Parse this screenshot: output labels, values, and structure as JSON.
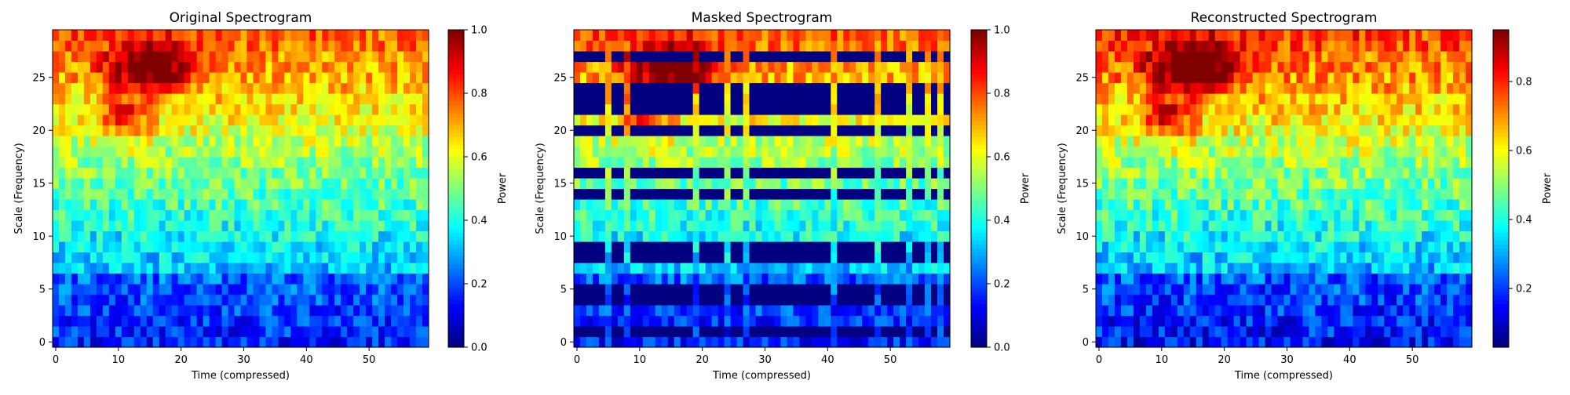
{
  "chart_data": [
    {
      "type": "heatmap",
      "title": "Original Spectrogram",
      "xlabel": "Time (compressed)",
      "ylabel": "Scale (Frequency)",
      "colorbar_label": "Power",
      "colormap": "jet",
      "x_range": [
        0,
        59
      ],
      "y_range": [
        0,
        29
      ],
      "x_ticks": [
        "0",
        "10",
        "20",
        "30",
        "40",
        "50"
      ],
      "y_ticks": [
        "0",
        "5",
        "10",
        "15",
        "20",
        "25"
      ],
      "colorbar_range": [
        0.0,
        1.0
      ],
      "colorbar_ticks": [
        "0.0",
        "0.2",
        "0.4",
        "0.6",
        "0.8",
        "1.0"
      ],
      "grid": false
    },
    {
      "type": "heatmap",
      "title": "Masked Spectrogram",
      "xlabel": "Time (compressed)",
      "ylabel": "Scale (Frequency)",
      "colorbar_label": "Power",
      "colormap": "jet",
      "x_range": [
        0,
        59
      ],
      "y_range": [
        0,
        29
      ],
      "x_ticks": [
        "0",
        "10",
        "20",
        "30",
        "40",
        "50"
      ],
      "y_ticks": [
        "0",
        "5",
        "10",
        "15",
        "20",
        "25"
      ],
      "colorbar_range": [
        0.0,
        1.0
      ],
      "colorbar_ticks": [
        "0.0",
        "0.2",
        "0.4",
        "0.6",
        "0.8",
        "1.0"
      ],
      "masked_rows": [
        1,
        4,
        5,
        8,
        9,
        14,
        16,
        20,
        22,
        23,
        24,
        27
      ],
      "masked_cols": [
        0,
        1,
        2,
        3,
        4,
        6,
        7,
        9,
        10,
        11,
        12,
        13,
        14,
        15,
        16,
        17,
        18,
        20,
        21,
        22,
        23,
        25,
        26,
        28,
        29,
        30,
        31,
        32,
        33,
        34,
        35,
        36,
        37,
        38,
        39,
        40,
        42,
        43,
        44,
        45,
        46,
        47,
        49,
        50,
        51,
        52,
        54,
        55,
        57,
        59
      ],
      "grid": false
    },
    {
      "type": "heatmap",
      "title": "Reconstructed Spectrogram",
      "xlabel": "Time (compressed)",
      "ylabel": "Scale (Frequency)",
      "colorbar_label": "Power",
      "colormap": "jet",
      "x_range": [
        0,
        59
      ],
      "y_range": [
        0,
        29
      ],
      "x_ticks": [
        "0",
        "10",
        "20",
        "30",
        "40",
        "50"
      ],
      "y_ticks": [
        "0",
        "5",
        "10",
        "15",
        "20",
        "25"
      ],
      "colorbar_range": [
        0.03,
        0.95
      ],
      "colorbar_ticks": [
        "0.2",
        "0.4",
        "0.6",
        "0.8"
      ],
      "grid": false
    }
  ]
}
